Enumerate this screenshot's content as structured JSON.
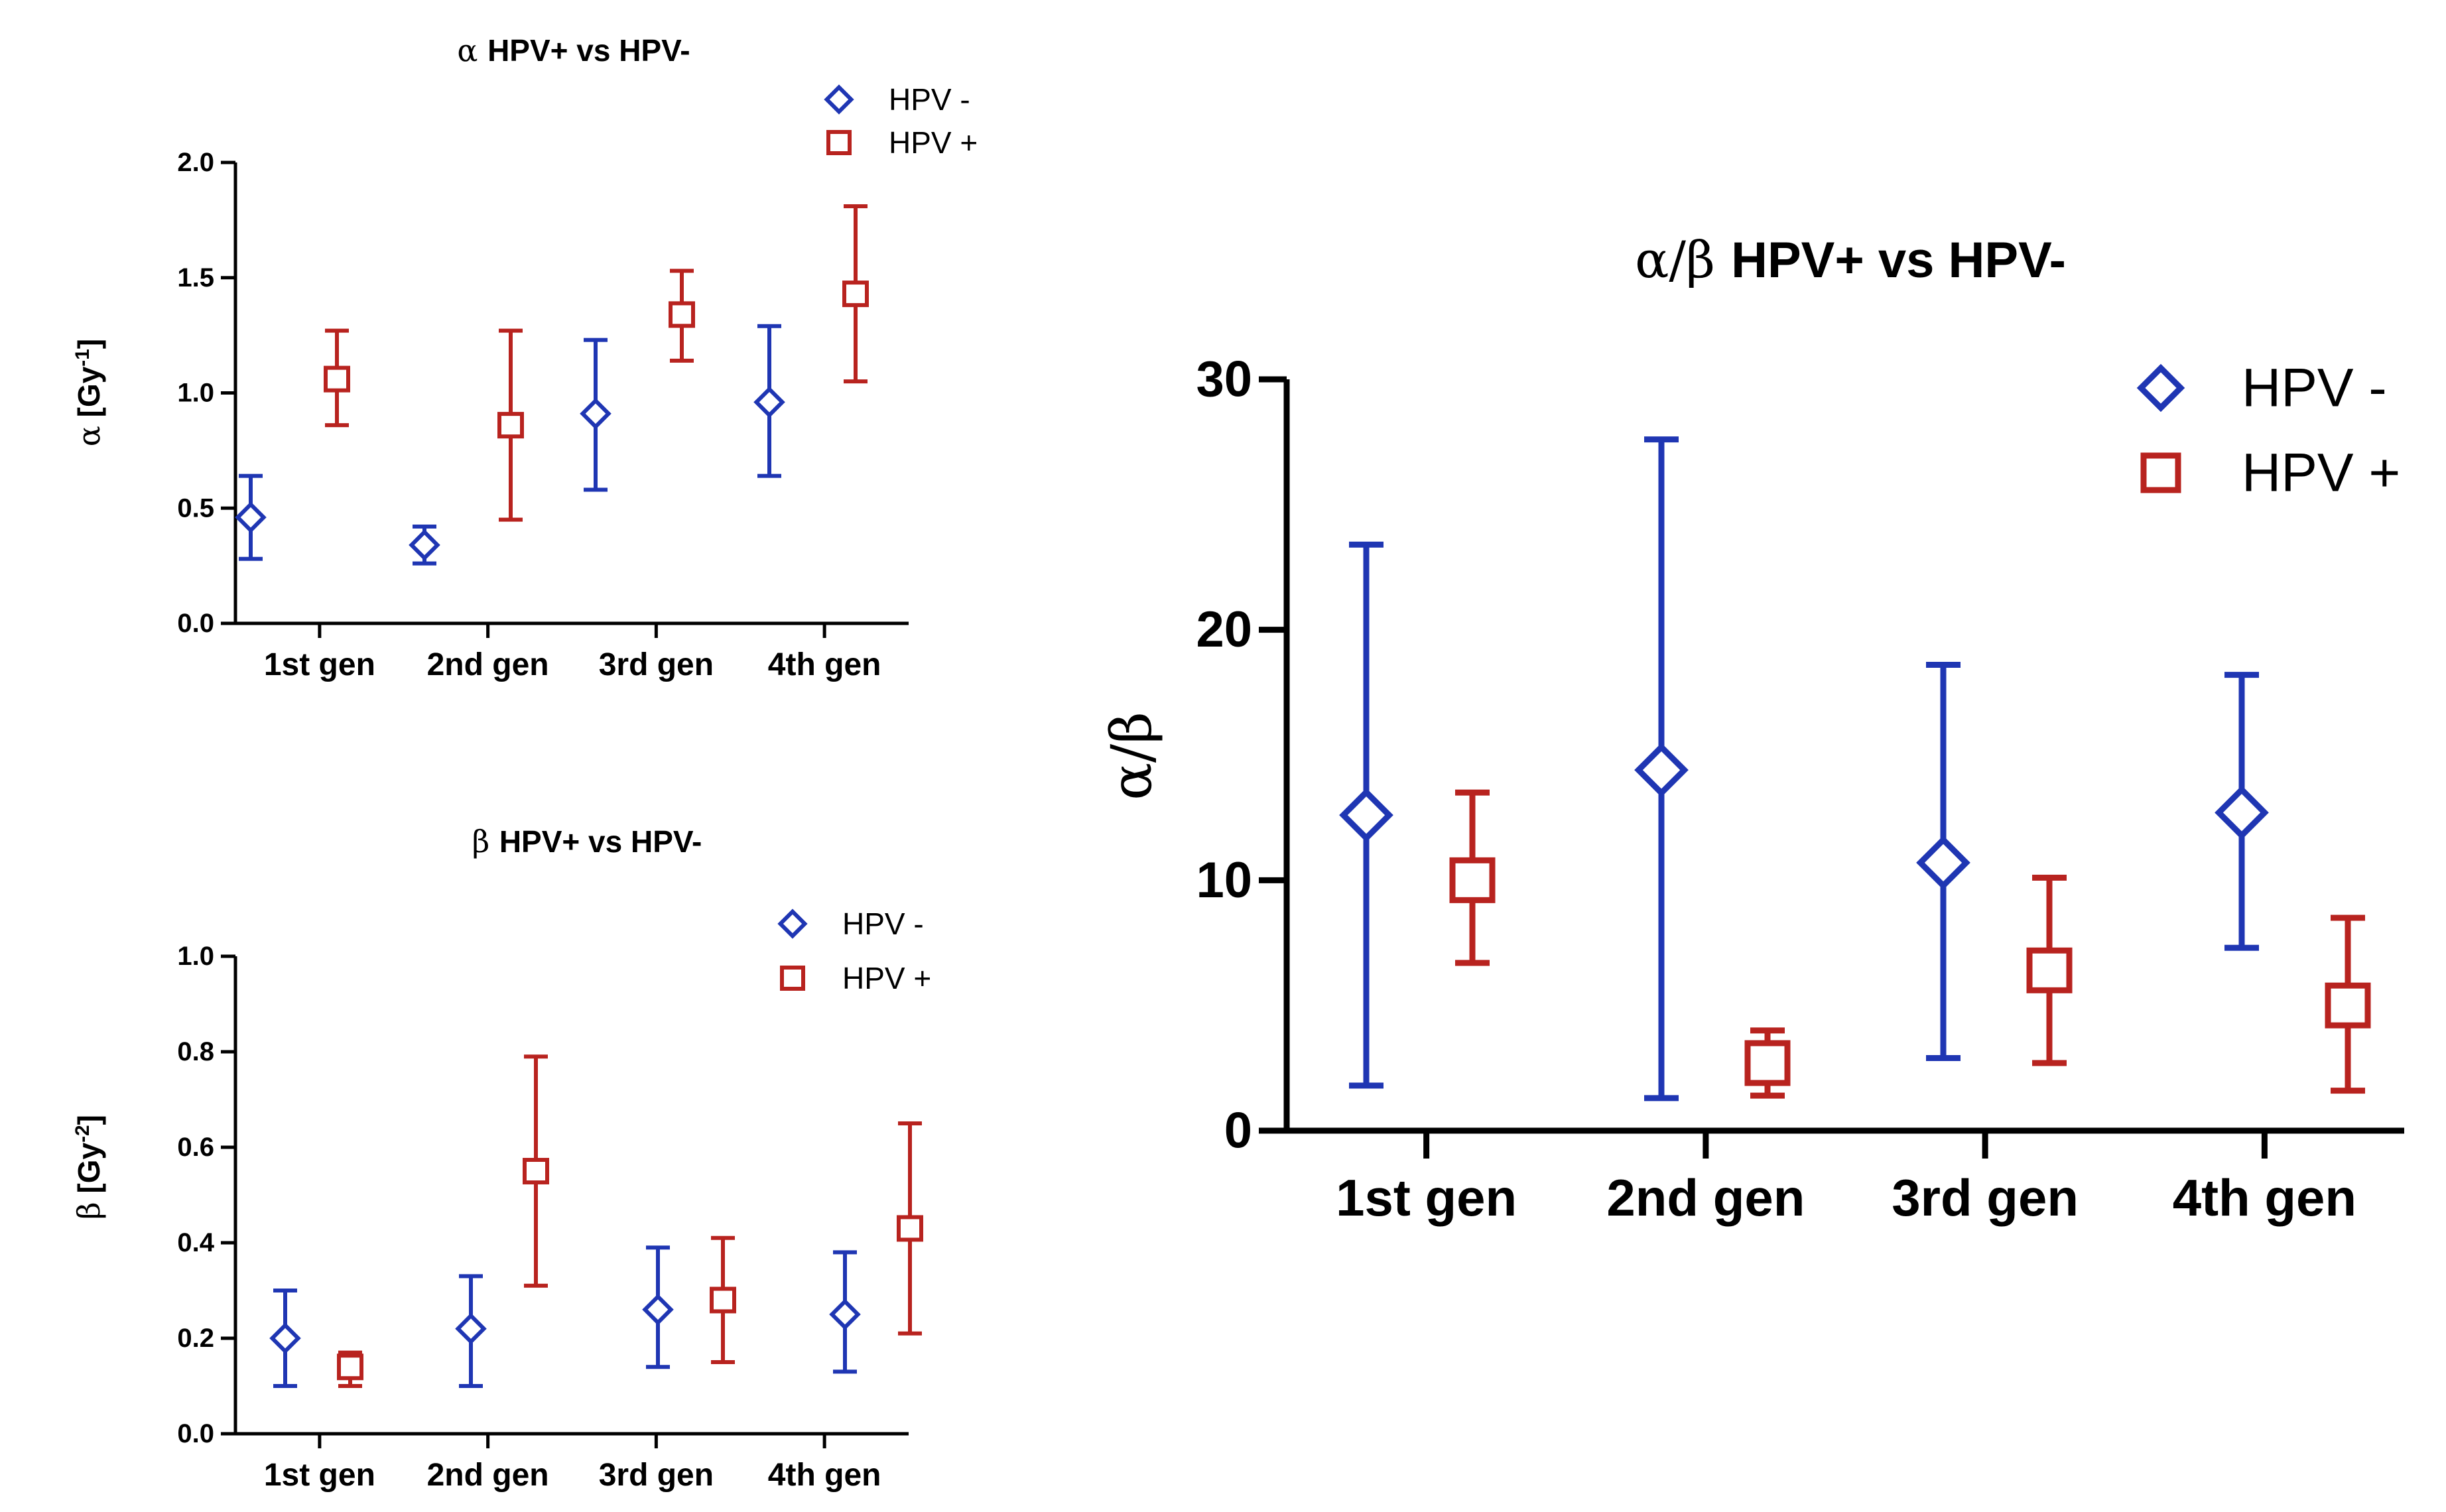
{
  "colors": {
    "hpv_neg": "#1f36b3",
    "hpv_pos": "#b8231f"
  },
  "chart_data": [
    {
      "id": "alpha",
      "type": "scatter",
      "title_greek": "α",
      "title": "HPV+ vs HPV-",
      "ylabel_greek": "α",
      "ylabel_unit": "[Gy",
      "ylabel_sup": "-1",
      "ylabel_close": "]",
      "categories": [
        "1st gen",
        "2nd gen",
        "3rd gen",
        "4th gen"
      ],
      "ylim": [
        0,
        2.0
      ],
      "yticks": [
        0.0,
        0.5,
        1.0,
        1.5,
        2.0
      ],
      "ytick_labels": [
        "0.0",
        "0.5",
        "1.0",
        "1.5",
        "2.0"
      ],
      "series": [
        {
          "name": "HPV -",
          "marker": "diamond",
          "values": [
            0.46,
            0.34,
            0.91,
            0.96
          ],
          "lower": [
            0.28,
            0.26,
            0.58,
            0.64
          ],
          "upper": [
            0.64,
            0.42,
            1.23,
            1.29
          ]
        },
        {
          "name": "HPV +",
          "marker": "square",
          "values": [
            1.06,
            0.86,
            1.34,
            1.43
          ],
          "lower": [
            0.86,
            0.45,
            1.14,
            1.05
          ],
          "upper": [
            1.27,
            1.27,
            1.53,
            1.81
          ]
        }
      ],
      "legend": [
        "HPV -",
        "HPV +"
      ],
      "legend_position": "top-right"
    },
    {
      "id": "beta",
      "type": "scatter",
      "title_greek": "β",
      "title": "HPV+ vs HPV-",
      "ylabel_greek": "β",
      "ylabel_unit": "[Gy",
      "ylabel_sup": "-2",
      "ylabel_close": "]",
      "categories": [
        "1st gen",
        "2nd gen",
        "3rd gen",
        "4th gen"
      ],
      "ylim": [
        0,
        1.0
      ],
      "yticks": [
        0.0,
        0.2,
        0.4,
        0.6,
        0.8,
        1.0
      ],
      "ytick_labels": [
        "0.0",
        "0.2",
        "0.4",
        "0.6",
        "0.8",
        "1.0"
      ],
      "series": [
        {
          "name": "HPV -",
          "marker": "diamond",
          "values": [
            0.2,
            0.22,
            0.26,
            0.25
          ],
          "lower": [
            0.1,
            0.1,
            0.14,
            0.13
          ],
          "upper": [
            0.3,
            0.33,
            0.39,
            0.38
          ]
        },
        {
          "name": "HPV +",
          "marker": "square",
          "values": [
            0.14,
            0.55,
            0.28,
            0.43
          ],
          "lower": [
            0.1,
            0.31,
            0.15,
            0.21
          ],
          "upper": [
            0.17,
            0.79,
            0.41,
            0.65
          ]
        }
      ],
      "legend": [
        "HPV -",
        "HPV +"
      ],
      "legend_position": "top-right"
    },
    {
      "id": "ratio",
      "type": "scatter",
      "title_greek": "α/β",
      "title": "HPV+ vs HPV-",
      "ylabel_greek": "α/β",
      "categories": [
        "1st gen",
        "2nd gen",
        "3rd gen",
        "4th gen"
      ],
      "ylim": [
        0,
        30
      ],
      "yticks": [
        0,
        10,
        20,
        30
      ],
      "ytick_labels": [
        "0",
        "10",
        "20",
        "30"
      ],
      "series": [
        {
          "name": "HPV -",
          "marker": "diamond",
          "values": [
            12.6,
            14.4,
            10.7,
            12.7
          ],
          "lower": [
            1.8,
            1.3,
            2.9,
            7.3
          ],
          "upper": [
            23.4,
            27.6,
            18.6,
            18.2
          ]
        },
        {
          "name": "HPV +",
          "marker": "square",
          "values": [
            10.0,
            2.7,
            6.4,
            5.0
          ],
          "lower": [
            6.7,
            1.4,
            2.7,
            1.6
          ],
          "upper": [
            13.5,
            4.0,
            10.1,
            8.5
          ]
        }
      ],
      "legend": [
        "HPV -",
        "HPV +"
      ],
      "legend_position": "top-right"
    }
  ]
}
